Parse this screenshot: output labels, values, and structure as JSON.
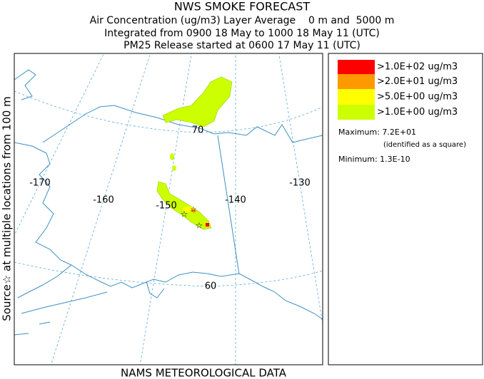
{
  "header": {
    "title": "NWS SMOKE FORECAST",
    "lines": [
      "Air Concentration (ug/m3) Layer Average    0 m and  5000 m",
      "Integrated from 0900 18 May to 1000 18 May 11 (UTC)",
      "PM25 Release started at 0600 17 May 11 (UTC)"
    ]
  },
  "side_label": "Source☆ at multiple locations from 100 m",
  "footer": "NAMS METEOROLOGICAL DATA",
  "map": {
    "labels": [
      "-170",
      "-160",
      "-150",
      "-140",
      "-130",
      "70",
      "60"
    ]
  },
  "legend": {
    "entries": [
      {
        "label": ">1.0E+02 ug/m3",
        "color": "#ff0000"
      },
      {
        "label": ">2.0E+01 ug/m3",
        "color": "#ff9900"
      },
      {
        "label": ">5.0E+00 ug/m3",
        "color": "#ffff00"
      },
      {
        "label": ">1.0E+00 ug/m3",
        "color": "#ccff00"
      }
    ],
    "maximum": "Maximum: 7.2E+01",
    "maximum_note": "(identified as a square)",
    "minimum": "Minimum: 1.3E-10"
  }
}
